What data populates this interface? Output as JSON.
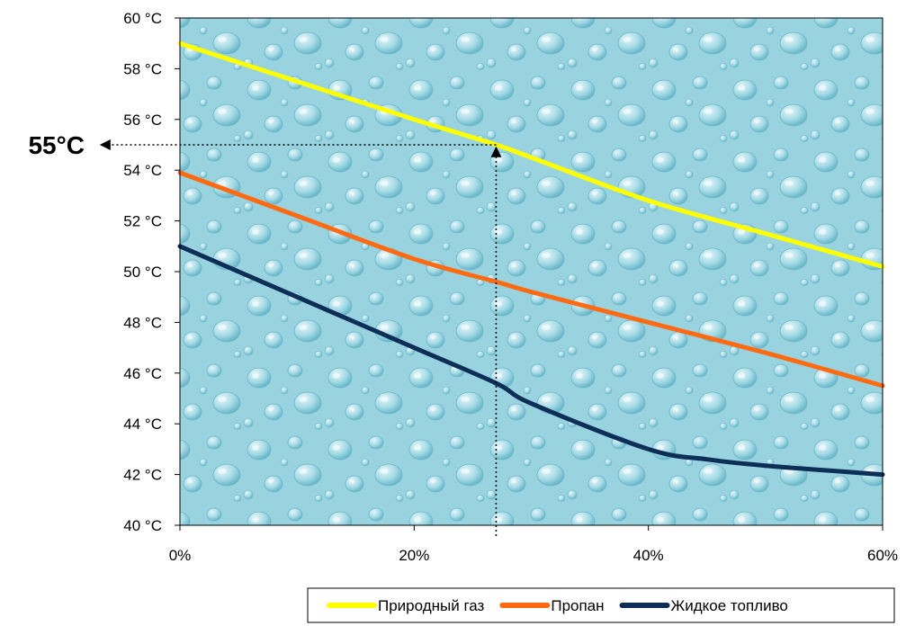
{
  "chart_data": {
    "type": "line",
    "title": "",
    "xlabel": "",
    "ylabel": "",
    "xlim": [
      0,
      60
    ],
    "ylim": [
      40,
      60
    ],
    "x_ticks": [
      0,
      20,
      40,
      60
    ],
    "x_tick_labels": [
      "0%",
      "20%",
      "40%",
      "60%"
    ],
    "y_ticks": [
      40,
      42,
      44,
      46,
      48,
      50,
      52,
      54,
      56,
      58,
      60
    ],
    "y_tick_labels": [
      "40 °C",
      "42 °C",
      "44 °C",
      "46 °C",
      "48 °C",
      "50 °C",
      "52 °C",
      "54 °C",
      "56 °C",
      "58 °C",
      "60 °C"
    ],
    "grid": false,
    "legend_position": "bottom-right",
    "plot_background": "water-droplets texture (light blue)",
    "series": [
      {
        "name": "Природный газ",
        "color": "#ffff00",
        "x": [
          0,
          10,
          20,
          27,
          30,
          40,
          50,
          60
        ],
        "y": [
          59,
          57.5,
          56,
          55,
          54.5,
          52.8,
          51.5,
          50.2
        ]
      },
      {
        "name": "Пропан",
        "color": "#ff6a13",
        "x": [
          0,
          10,
          20,
          27,
          30,
          40,
          50,
          60
        ],
        "y": [
          53.9,
          52.2,
          50.5,
          49.6,
          49.2,
          48,
          46.8,
          45.5
        ]
      },
      {
        "name": "Жидкое топливо",
        "color": "#0d2e57",
        "x": [
          0,
          10,
          20,
          27,
          30,
          40,
          45,
          50,
          60
        ],
        "y": [
          51,
          49,
          47,
          45.6,
          44.8,
          43,
          42.6,
          42.35,
          42
        ]
      }
    ],
    "annotation": {
      "label": "55°C",
      "x": 27,
      "y": 55,
      "style": "dotted arrows"
    }
  }
}
